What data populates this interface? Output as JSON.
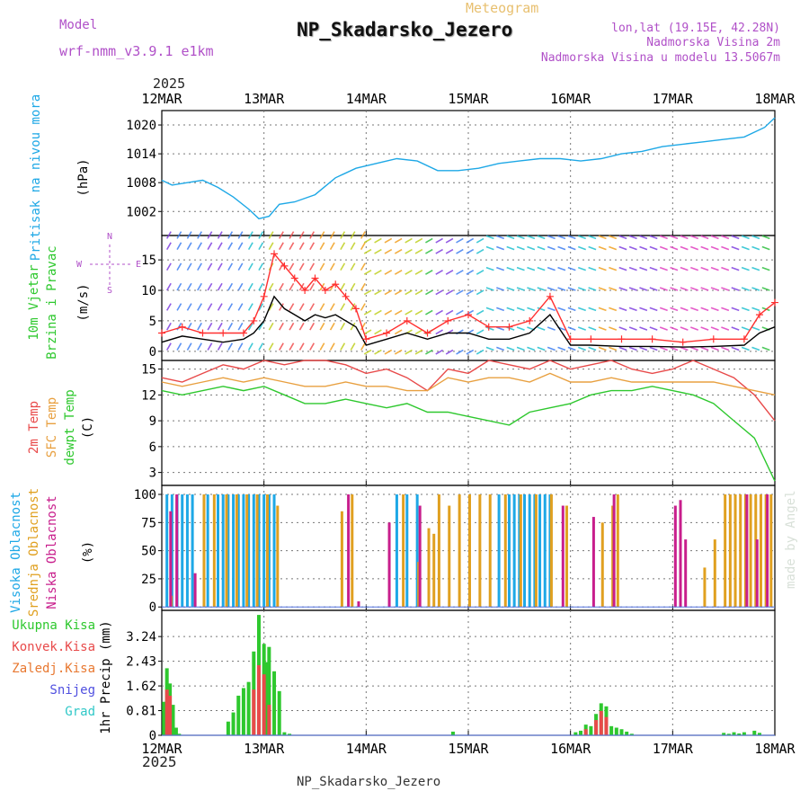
{
  "header": {
    "model_label": "Model",
    "model_name": "wrf-nmm_v3.9.1 e1km",
    "kind": "Meteogram",
    "station": "NP_Skadarsko_Jezero",
    "lonlat": "lon,lat (19.15E, 42.28N)",
    "elevation": "Nadmorska Visina 2m",
    "model_elevation": "Nadmorska Visina u modelu 13.5067m",
    "year": "2025",
    "footer_station": "NP_Skadarsko_Jezero",
    "credit": "made by Angel"
  },
  "colors": {
    "pressure": "#1ea8e6",
    "temp2m": "#e84a4a",
    "sfctemp": "#e8a040",
    "dewpt": "#2ec82e",
    "high_cloud": "#1ea8e6",
    "mid_cloud": "#e0a020",
    "low_cloud": "#c81e8c",
    "total_precip": "#2ec82e",
    "conv_precip": "#e84a4a",
    "frozen_precip": "#e87830",
    "snow": "#5050e0",
    "graupel": "#30c8c8",
    "wind_speed": "#000000",
    "gust": "#ff3030",
    "ylabel_purple": "#b050c8"
  },
  "chart_data": [
    {
      "type": "line",
      "panel": "pressure",
      "ylabel_parts": [
        "Pritisak na nivou mora",
        "(hPa)"
      ],
      "ticks": [
        1002,
        1008,
        1014,
        1020
      ],
      "ylim": [
        997,
        1023
      ],
      "x_labels": [
        "12MAR",
        "13MAR",
        "14MAR",
        "15MAR",
        "16MAR",
        "17MAR",
        "18MAR"
      ],
      "series": [
        {
          "name": "Pritisak na nivou mora",
          "x": [
            0,
            0.1,
            0.25,
            0.4,
            0.55,
            0.7,
            0.85,
            0.95,
            1.05,
            1.15,
            1.3,
            1.5,
            1.7,
            1.9,
            2.1,
            2.3,
            2.5,
            2.7,
            2.9,
            3.1,
            3.3,
            3.5,
            3.7,
            3.9,
            4.1,
            4.3,
            4.5,
            4.7,
            4.9,
            5.1,
            5.3,
            5.5,
            5.7,
            5.9,
            6.0
          ],
          "values": [
            1008.5,
            1007.5,
            1008,
            1008.5,
            1007,
            1005,
            1002.5,
            1000.5,
            1001,
            1003.5,
            1004,
            1005.5,
            1009,
            1011,
            1012,
            1013,
            1012.5,
            1010.5,
            1010.5,
            1011,
            1012,
            1012.5,
            1013,
            1013,
            1012.5,
            1013,
            1014,
            1014.5,
            1015.5,
            1016,
            1016.5,
            1017,
            1017.5,
            1019.5,
            1021.5
          ]
        }
      ]
    },
    {
      "type": "line",
      "panel": "wind",
      "ylabel_parts": [
        "10m Vjetar",
        "Brzina i Pravac",
        "(m/s)"
      ],
      "compass": {
        "n": "N",
        "s": "S",
        "w": "W",
        "e": "E"
      },
      "ticks": [
        0,
        5,
        10,
        15
      ],
      "ylim": [
        -1.5,
        19
      ],
      "series": [
        {
          "name": "speed",
          "x": [
            0,
            0.2,
            0.4,
            0.6,
            0.8,
            0.9,
            1.0,
            1.1,
            1.2,
            1.3,
            1.4,
            1.5,
            1.6,
            1.7,
            1.8,
            1.9,
            2.0,
            2.2,
            2.4,
            2.6,
            2.8,
            3.0,
            3.2,
            3.4,
            3.6,
            3.8,
            4.0,
            4.2,
            4.5,
            4.8,
            5.1,
            5.4,
            5.7,
            5.85,
            6.0
          ],
          "values": [
            1.5,
            2.5,
            2,
            1.5,
            2,
            3,
            5,
            9,
            7,
            6,
            5,
            6,
            5.5,
            6,
            5,
            4,
            1,
            2,
            3,
            2,
            3,
            3,
            2,
            2,
            3,
            6,
            1,
            1,
            0.8,
            0.8,
            0.7,
            0.8,
            1,
            3,
            4
          ]
        },
        {
          "name": "gust",
          "x": [
            0,
            0.2,
            0.4,
            0.6,
            0.8,
            0.9,
            1.0,
            1.1,
            1.2,
            1.3,
            1.4,
            1.5,
            1.6,
            1.7,
            1.8,
            1.9,
            2.0,
            2.2,
            2.4,
            2.6,
            2.8,
            3.0,
            3.2,
            3.4,
            3.6,
            3.8,
            4.0,
            4.2,
            4.5,
            4.8,
            5.1,
            5.4,
            5.7,
            5.85,
            6.0
          ],
          "values": [
            3,
            4,
            3,
            3,
            3,
            5,
            9,
            16,
            14,
            12,
            10,
            12,
            10,
            11,
            9,
            7,
            2,
            3,
            5,
            3,
            5,
            6,
            4,
            4,
            5,
            9,
            2,
            2,
            2,
            2,
            1.5,
            2,
            2,
            6,
            8
          ]
        }
      ]
    },
    {
      "type": "line",
      "panel": "temperature",
      "ylabel_parts": [
        "2m Temp",
        "SFC Temp",
        "dewpt Temp",
        "(C)"
      ],
      "ticks": [
        3,
        6,
        9,
        12,
        15
      ],
      "ylim": [
        1.5,
        16
      ],
      "series": [
        {
          "name": "2m Temp",
          "x": [
            0,
            0.2,
            0.4,
            0.6,
            0.8,
            1.0,
            1.2,
            1.4,
            1.6,
            1.8,
            2.0,
            2.2,
            2.4,
            2.6,
            2.8,
            3.0,
            3.2,
            3.4,
            3.6,
            3.8,
            4.0,
            4.2,
            4.4,
            4.6,
            4.8,
            5.0,
            5.2,
            5.4,
            5.6,
            5.8,
            6.0
          ],
          "values": [
            14,
            13.5,
            14.5,
            15.5,
            15,
            16,
            15.5,
            16,
            16,
            15.5,
            14.5,
            15,
            14,
            12.5,
            15,
            14.5,
            16,
            15.5,
            15,
            16,
            15,
            15.5,
            16,
            15,
            14.5,
            15,
            16,
            15,
            14,
            12,
            9
          ]
        },
        {
          "name": "SFC Temp",
          "x": [
            0,
            0.2,
            0.4,
            0.6,
            0.8,
            1.0,
            1.2,
            1.4,
            1.6,
            1.8,
            2.0,
            2.2,
            2.4,
            2.6,
            2.8,
            3.0,
            3.2,
            3.4,
            3.6,
            3.8,
            4.0,
            4.2,
            4.4,
            4.6,
            4.8,
            5.0,
            5.2,
            5.4,
            5.6,
            5.8,
            6.0
          ],
          "values": [
            13.5,
            13,
            13.5,
            14,
            13.5,
            14,
            13.5,
            13,
            13,
            13.5,
            13,
            13,
            12.5,
            12.5,
            14,
            13.5,
            14,
            14,
            13.5,
            14.5,
            13.5,
            13.5,
            14,
            13.5,
            13.5,
            13.5,
            13.5,
            13.5,
            13,
            12.5,
            12
          ]
        },
        {
          "name": "dewpt Temp",
          "x": [
            0,
            0.2,
            0.4,
            0.6,
            0.8,
            1.0,
            1.2,
            1.4,
            1.6,
            1.8,
            2.0,
            2.2,
            2.4,
            2.6,
            2.8,
            3.0,
            3.2,
            3.4,
            3.6,
            3.8,
            4.0,
            4.2,
            4.4,
            4.6,
            4.8,
            5.0,
            5.2,
            5.4,
            5.6,
            5.8,
            6.0
          ],
          "values": [
            12.5,
            12,
            12.5,
            13,
            12.5,
            13,
            12,
            11,
            11,
            11.5,
            11,
            10.5,
            11,
            10,
            10,
            9.5,
            9,
            8.5,
            10,
            10.5,
            11,
            12,
            12.5,
            12.5,
            13,
            12.5,
            12,
            11,
            9,
            7,
            2
          ]
        }
      ]
    },
    {
      "type": "bar",
      "panel": "clouds",
      "ylabel_parts": [
        "Visoka Oblacnost",
        "Srednja Oblacnost",
        "Niska Oblacnost",
        "(%)"
      ],
      "ticks": [
        0,
        25,
        50,
        75,
        100
      ],
      "ylim": [
        -3,
        108
      ],
      "series": [
        {
          "name": "Visoka Oblacnost",
          "x": [
            0.05,
            0.1,
            0.15,
            0.2,
            0.25,
            0.3,
            0.35,
            0.45,
            0.55,
            0.6,
            0.65,
            0.7,
            0.75,
            0.8,
            0.85,
            0.9,
            0.95,
            1.0,
            1.05,
            1.1,
            2.3,
            2.4,
            2.5,
            3.3,
            3.4,
            3.45,
            3.5,
            3.55,
            3.6,
            3.65,
            3.7,
            3.75,
            3.8
          ],
          "values": [
            100,
            100,
            100,
            100,
            100,
            100,
            0,
            100,
            100,
            100,
            100,
            100,
            100,
            100,
            100,
            100,
            100,
            100,
            100,
            100,
            100,
            100,
            100,
            100,
            100,
            100,
            100,
            100,
            100,
            100,
            100,
            100,
            100
          ]
        },
        {
          "name": "Srednja Oblacnost",
          "x": [
            0.08,
            0.4,
            0.5,
            0.62,
            0.72,
            0.82,
            0.92,
            1.02,
            1.12,
            1.75,
            1.85,
            2.35,
            2.5,
            2.6,
            2.65,
            2.7,
            2.8,
            2.9,
            3.0,
            3.1,
            3.2,
            3.35,
            3.5,
            3.65,
            3.8,
            3.95,
            4.3,
            4.4,
            4.45,
            5.3,
            5.4,
            5.5,
            5.55,
            5.6,
            5.65,
            5.7,
            5.75,
            5.8,
            5.85,
            5.9,
            5.95
          ],
          "values": [
            10,
            100,
            100,
            100,
            100,
            100,
            100,
            100,
            90,
            85,
            100,
            100,
            40,
            70,
            65,
            100,
            90,
            100,
            100,
            100,
            100,
            100,
            100,
            100,
            100,
            90,
            75,
            90,
            100,
            35,
            60,
            100,
            100,
            100,
            100,
            100,
            100,
            100,
            100,
            100,
            100
          ]
        },
        {
          "name": "Niska Oblacnost",
          "x": [
            0.06,
            0.12,
            0.3,
            1.8,
            1.9,
            2.2,
            2.5,
            3.9,
            4.2,
            4.4,
            5.0,
            5.05,
            5.1,
            5.7,
            5.8,
            5.9
          ],
          "values": [
            85,
            100,
            30,
            100,
            5,
            75,
            90,
            90,
            80,
            100,
            90,
            95,
            60,
            100,
            60,
            100
          ]
        }
      ]
    },
    {
      "type": "bar",
      "panel": "precip",
      "ylabel_parts": [
        "1hr Precip",
        "(mm)"
      ],
      "legend": [
        "Ukupna Kisa",
        "Konvek.Kisa",
        "Zaledj.Kisa",
        "Snijeg",
        "Grad"
      ],
      "ticks": [
        0,
        0.81,
        1.62,
        2.43,
        3.24
      ],
      "ylim": [
        0,
        4.1
      ],
      "x_labels": [
        "12MAR",
        "13MAR",
        "14MAR",
        "15MAR",
        "16MAR",
        "17MAR",
        "18MAR"
      ],
      "series": [
        {
          "name": "Ukupna Kisa",
          "x": [
            0.02,
            0.05,
            0.08,
            0.11,
            0.14,
            0.17,
            0.65,
            0.7,
            0.75,
            0.8,
            0.85,
            0.9,
            0.95,
            1.0,
            1.02,
            1.05,
            1.1,
            1.15,
            1.2,
            1.25,
            2.85,
            4.05,
            4.1,
            4.15,
            4.2,
            4.25,
            4.3,
            4.35,
            4.4,
            4.45,
            4.5,
            4.55,
            4.6,
            5.5,
            5.55,
            5.6,
            5.65,
            5.7,
            5.8,
            5.85
          ],
          "values": [
            1.1,
            2.2,
            1.7,
            1.0,
            0.25,
            0.05,
            0.45,
            0.75,
            1.3,
            1.55,
            1.75,
            2.75,
            3.95,
            3.0,
            2.4,
            2.9,
            2.1,
            1.45,
            0.1,
            0.05,
            0.12,
            0.1,
            0.15,
            0.35,
            0.3,
            0.7,
            1.05,
            0.95,
            0.3,
            0.25,
            0.2,
            0.12,
            0.05,
            0.08,
            0.05,
            0.1,
            0.06,
            0.1,
            0.15,
            0.08
          ]
        },
        {
          "name": "Konvek.Kisa",
          "x": [
            0.05,
            0.08,
            0.9,
            0.95,
            1.0,
            1.05,
            4.15,
            4.25,
            4.3,
            4.35
          ],
          "values": [
            1.5,
            1.3,
            1.5,
            2.3,
            2.0,
            1.0,
            0.2,
            0.5,
            0.8,
            0.6
          ]
        }
      ]
    }
  ]
}
